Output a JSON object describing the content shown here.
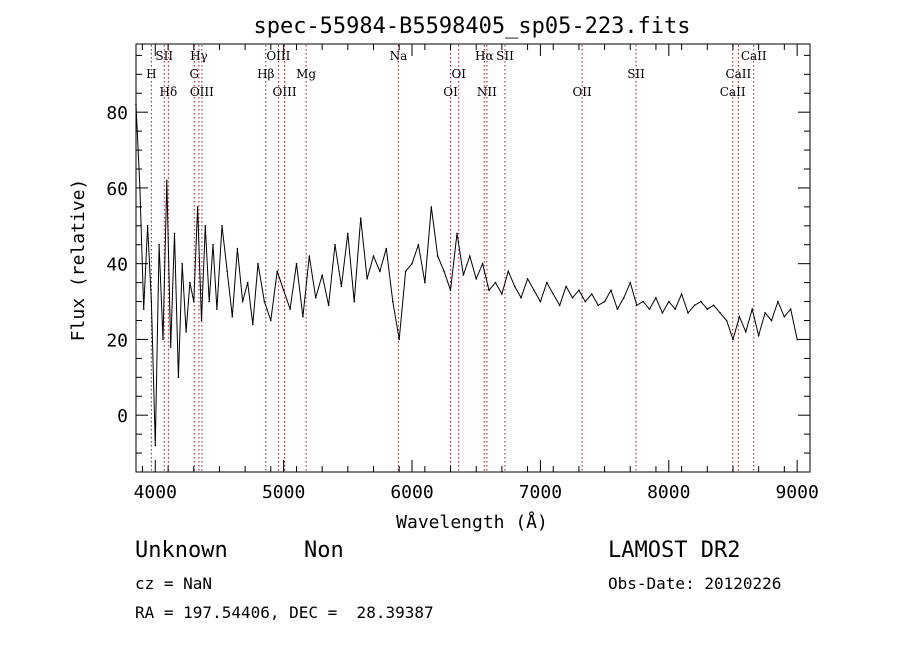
{
  "chart_data": {
    "type": "line",
    "title": "spec-55984-B5598405_sp05-223.fits",
    "xlabel": "Wavelength (Å)",
    "ylabel": "Flux (relative)",
    "xlim": [
      3850,
      9100
    ],
    "ylim": [
      -15,
      98
    ],
    "xticks": [
      4000,
      5000,
      6000,
      7000,
      8000,
      9000
    ],
    "yticks": [
      0,
      20,
      40,
      60,
      80
    ],
    "grid": false,
    "series": [
      {
        "name": "flux",
        "x": [
          3850,
          3880,
          3910,
          3940,
          3970,
          4000,
          4030,
          4060,
          4090,
          4120,
          4150,
          4180,
          4210,
          4240,
          4270,
          4300,
          4330,
          4360,
          4390,
          4420,
          4450,
          4480,
          4520,
          4560,
          4600,
          4640,
          4680,
          4720,
          4760,
          4800,
          4850,
          4900,
          4950,
          5000,
          5050,
          5100,
          5150,
          5200,
          5250,
          5300,
          5350,
          5400,
          5450,
          5500,
          5550,
          5600,
          5650,
          5700,
          5750,
          5800,
          5850,
          5900,
          5950,
          6000,
          6050,
          6100,
          6150,
          6200,
          6250,
          6300,
          6350,
          6400,
          6450,
          6500,
          6550,
          6600,
          6650,
          6700,
          6750,
          6800,
          6850,
          6900,
          6950,
          7000,
          7050,
          7100,
          7150,
          7200,
          7250,
          7300,
          7350,
          7400,
          7450,
          7500,
          7550,
          7600,
          7650,
          7700,
          7750,
          7800,
          7850,
          7900,
          7950,
          8000,
          8050,
          8100,
          8150,
          8200,
          8250,
          8300,
          8350,
          8400,
          8450,
          8500,
          8550,
          8600,
          8650,
          8700,
          8750,
          8800,
          8850,
          8900,
          8950,
          9000
        ],
        "y": [
          82,
          60,
          28,
          50,
          30,
          -8,
          45,
          20,
          62,
          18,
          48,
          10,
          40,
          22,
          35,
          30,
          55,
          25,
          50,
          30,
          45,
          28,
          50,
          38,
          26,
          44,
          30,
          35,
          24,
          40,
          30,
          25,
          38,
          33,
          28,
          40,
          26,
          42,
          31,
          37,
          29,
          45,
          34,
          48,
          30,
          52,
          36,
          42,
          38,
          44,
          30,
          20,
          38,
          40,
          45,
          35,
          55,
          42,
          38,
          33,
          48,
          37,
          42,
          36,
          40,
          33,
          35,
          32,
          38,
          34,
          31,
          36,
          33,
          30,
          35,
          32,
          29,
          34,
          31,
          33,
          30,
          32,
          29,
          30,
          33,
          28,
          31,
          35,
          29,
          30,
          28,
          31,
          27,
          30,
          28,
          32,
          27,
          29,
          30,
          28,
          29,
          27,
          25,
          20,
          26,
          22,
          28,
          21,
          27,
          25,
          30,
          26,
          28,
          20
        ]
      }
    ],
    "lines": [
      {
        "name": "H",
        "wavelength": 3970,
        "level": 1
      },
      {
        "name": "SII",
        "wavelength": 4070,
        "level": 0
      },
      {
        "name": "Hδ",
        "wavelength": 4102,
        "level": 2
      },
      {
        "name": "Hγ",
        "wavelength": 4340,
        "level": 0
      },
      {
        "name": "G",
        "wavelength": 4304,
        "level": 1
      },
      {
        "name": "OIII",
        "wavelength": 4363,
        "level": 2
      },
      {
        "name": "OIII",
        "wavelength": 4959,
        "level": 0
      },
      {
        "name": "Hβ",
        "wavelength": 4861,
        "level": 1
      },
      {
        "name": "OIII",
        "wavelength": 5007,
        "level": 2
      },
      {
        "name": "Mg",
        "wavelength": 5175,
        "level": 1
      },
      {
        "name": "Na",
        "wavelength": 5894,
        "level": 0
      },
      {
        "name": "OI",
        "wavelength": 6364,
        "level": 1
      },
      {
        "name": "OI",
        "wavelength": 6300,
        "level": 2
      },
      {
        "name": "Hα",
        "wavelength": 6563,
        "level": 0
      },
      {
        "name": "SII",
        "wavelength": 6724,
        "level": 0
      },
      {
        "name": "NII",
        "wavelength": 6583,
        "level": 2
      },
      {
        "name": "OII",
        "wavelength": 7325,
        "level": 2
      },
      {
        "name": "SII",
        "wavelength": 7745,
        "level": 1
      },
      {
        "name": "CaII",
        "wavelength": 8662,
        "level": 0
      },
      {
        "name": "CaII",
        "wavelength": 8542,
        "level": 1
      },
      {
        "name": "CaII",
        "wavelength": 8498,
        "level": 2
      }
    ]
  },
  "info": {
    "obj_class": "Unknown",
    "obj_subclass": "Non",
    "cz": "cz = NaN",
    "radec": "RA = 197.54406, DEC =  28.39387",
    "survey": "LAMOST DR2",
    "obs_date": "Obs-Date: 20120226"
  },
  "colors": {
    "line_marker": "#8b1a1a",
    "spectrum": "#000000",
    "axis": "#000000"
  }
}
